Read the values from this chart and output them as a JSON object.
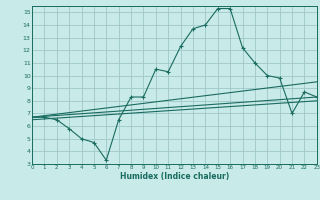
{
  "xlabel": "Humidex (Indice chaleur)",
  "bg_color": "#c8eae8",
  "grid_color": "#a0c8c8",
  "line_color": "#1a6b60",
  "xlim": [
    0,
    23
  ],
  "ylim": [
    3,
    15.5
  ],
  "xticks": [
    0,
    1,
    2,
    3,
    4,
    5,
    6,
    7,
    8,
    9,
    10,
    11,
    12,
    13,
    14,
    15,
    16,
    17,
    18,
    19,
    20,
    21,
    22,
    23
  ],
  "yticks": [
    3,
    4,
    5,
    6,
    7,
    8,
    9,
    10,
    11,
    12,
    13,
    14,
    15
  ],
  "series1_x": [
    0,
    1,
    2,
    3,
    4,
    5,
    6,
    7,
    8,
    9,
    10,
    11,
    12,
    13,
    14,
    15,
    16,
    17,
    18,
    19,
    20,
    21,
    22,
    23
  ],
  "series1_y": [
    6.7,
    6.7,
    6.5,
    5.8,
    5.0,
    4.7,
    3.3,
    6.5,
    8.3,
    8.3,
    10.5,
    10.3,
    12.3,
    13.7,
    14.0,
    15.3,
    15.3,
    12.2,
    11.0,
    10.0,
    9.8,
    7.0,
    8.7,
    8.3
  ],
  "series2_x": [
    0,
    23
  ],
  "series2_y": [
    6.7,
    8.3
  ],
  "series3_x": [
    0,
    23
  ],
  "series3_y": [
    6.7,
    9.5
  ],
  "series4_x": [
    0,
    23
  ],
  "series4_y": [
    6.5,
    8.0
  ]
}
